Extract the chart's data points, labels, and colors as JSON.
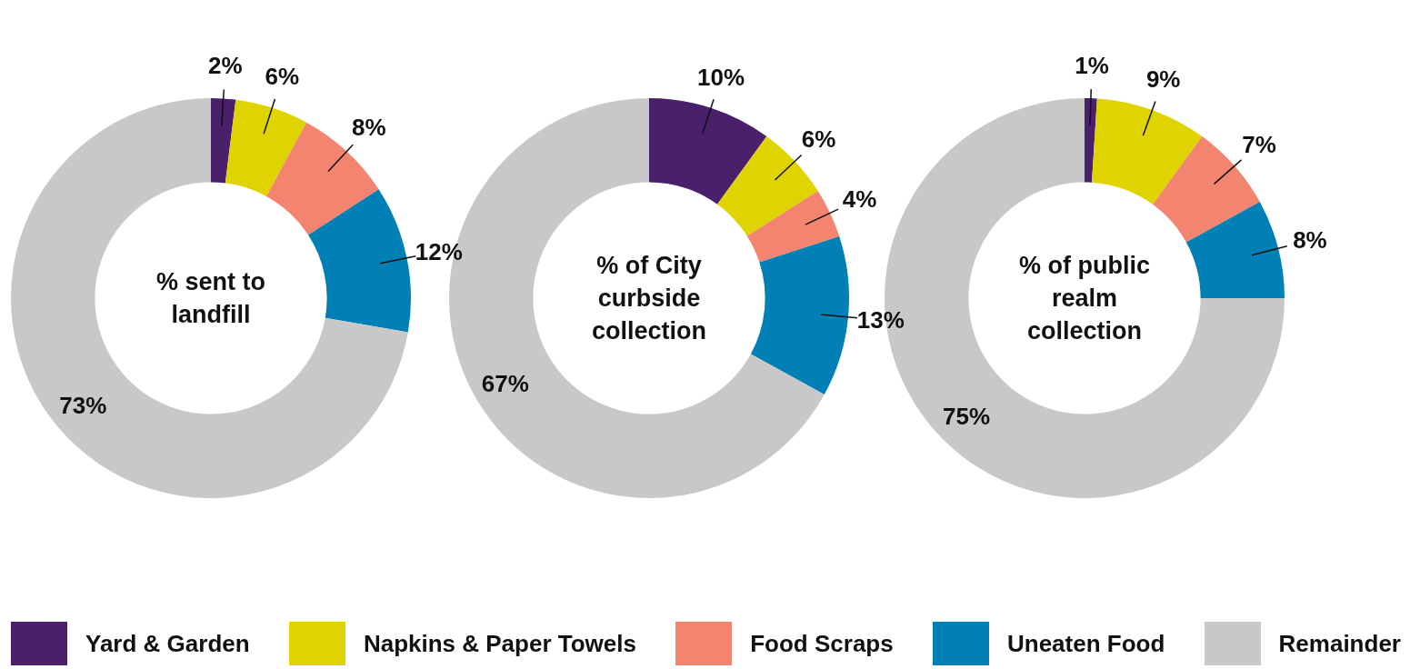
{
  "chart_data": [
    {
      "type": "donut",
      "title": "% sent to landfill",
      "categories": [
        "Yard & Garden",
        "Napkins & Paper Towels",
        "Food Scraps",
        "Uneaten Food",
        "Remainder"
      ],
      "values": [
        2,
        6,
        8,
        12,
        73
      ],
      "value_labels": [
        "2%",
        "6%",
        "8%",
        "12%",
        "73%"
      ],
      "colors": [
        "#4a1f6b",
        "#e0d400",
        "#f28470",
        "#0080b4",
        "#c8c8c8"
      ],
      "legend": "bottom"
    },
    {
      "type": "donut",
      "title": "% of City curbside collection",
      "values": [
        10,
        6,
        4,
        13,
        67
      ],
      "value_labels": [
        "10%",
        "6%",
        "4%",
        "13%",
        "67%"
      ],
      "colors": [
        "#4a1f6b",
        "#e0d400",
        "#f28470",
        "#0080b4",
        "#c8c8c8"
      ]
    },
    {
      "type": "donut",
      "title": "% of public realm collection",
      "values": [
        1,
        9,
        7,
        8,
        75
      ],
      "value_labels": [
        "1%",
        "9%",
        "7%",
        "8%",
        "75%"
      ],
      "colors": [
        "#4a1f6b",
        "#e0d400",
        "#f28470",
        "#0080b4",
        "#c8c8c8"
      ]
    }
  ]
}
